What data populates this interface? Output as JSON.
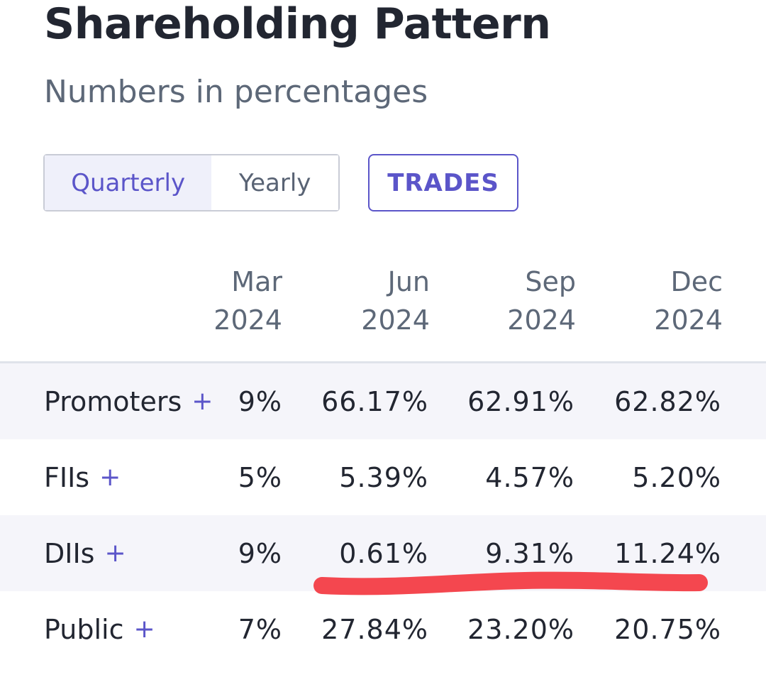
{
  "header": {
    "title": "Shareholding Pattern",
    "subtitle": "Numbers in percentages"
  },
  "controls": {
    "quarterly_label": "Quarterly",
    "yearly_label": "Yearly",
    "trades_label": "TRADES",
    "selected": "Quarterly"
  },
  "columns": [
    {
      "month": "Mar",
      "year": "2024",
      "visible_month": "Mar",
      "visible_year": "24"
    },
    {
      "month": "Jun",
      "year": "2024"
    },
    {
      "month": "Sep",
      "year": "2024"
    },
    {
      "month": "Dec",
      "year": "2024"
    }
  ],
  "rows": [
    {
      "label": "Promoters",
      "plus": "+",
      "cut_value": "9%",
      "values": [
        "66.17%",
        "62.91%",
        "62.82%"
      ]
    },
    {
      "label": "FIIs",
      "plus": "+",
      "cut_value": "5%",
      "values": [
        "5.39%",
        "4.57%",
        "5.20%"
      ]
    },
    {
      "label": "DIIs",
      "plus": "+",
      "cut_value": "9%",
      "values": [
        "0.61%",
        "9.31%",
        "11.24%"
      ]
    },
    {
      "label": "Public",
      "plus": "+",
      "cut_value": "7%",
      "values": [
        "27.84%",
        "23.20%",
        "20.75%"
      ]
    }
  ],
  "colors": {
    "accent": "#5b55c9",
    "highlight_stroke": "#f4474f",
    "row_shade": "#f5f5fa"
  }
}
